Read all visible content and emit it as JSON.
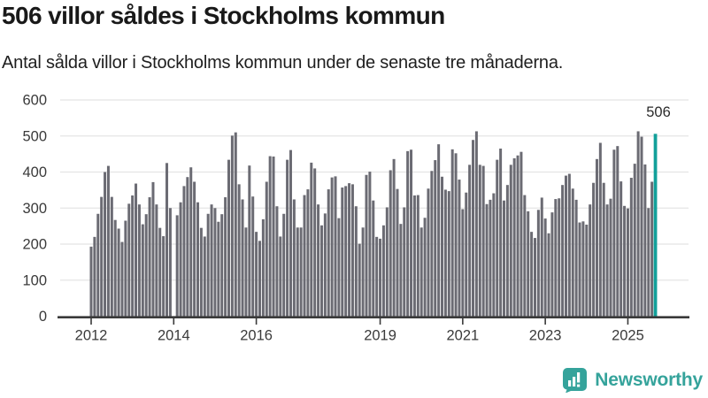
{
  "header": {
    "title": "506 villor såldes i Stockholms kommun",
    "subtitle": "Antal sålda villor i Stockholms kommun under de senaste tre månaderna."
  },
  "chart_data": {
    "type": "bar",
    "title": "506 villor såldes i Stockholms kommun",
    "subtitle": "Antal sålda villor i Stockholms kommun under de senaste tre månaderna.",
    "unit": "sålda villor (rullande tre månader)",
    "start_month": "2012-01",
    "frequency": "monthly",
    "ylim": [
      0,
      600
    ],
    "grid": true,
    "y_ticks": [
      0,
      100,
      200,
      300,
      400,
      500,
      600
    ],
    "x_ticks": [
      {
        "label": "2012",
        "year": 2012
      },
      {
        "label": "2014",
        "year": 2014
      },
      {
        "label": "2016",
        "year": 2016
      },
      {
        "label": "2019",
        "year": 2019
      },
      {
        "label": "2021",
        "year": 2021
      },
      {
        "label": "2023",
        "year": 2023
      },
      {
        "label": "2025",
        "year": 2025
      }
    ],
    "values": [
      193,
      220,
      284,
      331,
      400,
      417,
      331,
      267,
      243,
      206,
      265,
      312,
      335,
      368,
      310,
      255,
      283,
      330,
      372,
      310,
      245,
      222,
      425,
      300,
      null,
      280,
      316,
      361,
      386,
      413,
      373,
      316,
      245,
      221,
      284,
      310,
      300,
      262,
      283,
      330,
      434,
      501,
      510,
      366,
      324,
      246,
      418,
      332,
      234,
      209,
      269,
      373,
      444,
      443,
      305,
      221,
      284,
      434,
      461,
      324,
      246,
      246,
      336,
      352,
      426,
      410,
      310,
      252,
      285,
      352,
      385,
      388,
      272,
      357,
      361,
      369,
      366,
      305,
      201,
      246,
      392,
      401,
      321,
      220,
      215,
      252,
      302,
      405,
      436,
      353,
      256,
      302,
      458,
      462,
      335,
      336,
      246,
      273,
      354,
      403,
      433,
      477,
      387,
      351,
      347,
      463,
      452,
      379,
      297,
      343,
      420,
      489,
      513,
      420,
      417,
      311,
      323,
      341,
      434,
      465,
      321,
      364,
      420,
      438,
      446,
      456,
      336,
      291,
      234,
      217,
      295,
      329,
      271,
      230,
      288,
      325,
      327,
      364,
      390,
      395,
      354,
      323,
      260,
      263,
      254,
      310,
      370,
      436,
      481,
      370,
      310,
      326,
      462,
      472,
      374,
      306,
      299,
      384,
      423,
      513,
      498,
      421,
      300,
      373,
      506
    ],
    "highlight_last": true,
    "last_value_label": "506",
    "legend": "none",
    "colors": {
      "bar": "#6b6b73",
      "highlight": "#12a09a",
      "axis": "#3a3a3a",
      "gridline": "#e4e4e4",
      "label": "#3a3a3a"
    }
  },
  "footer": {
    "brand": "Newsworthy",
    "brand_color": "#35a39b"
  }
}
